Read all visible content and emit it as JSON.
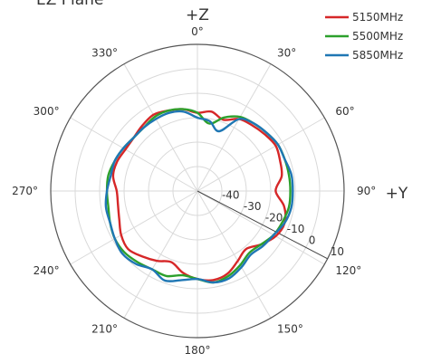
{
  "chart_data": {
    "type": "polar-line",
    "title": "EZ Plane",
    "axis_labels": {
      "top": "+Z",
      "right": "+Y"
    },
    "angle_tick_labels": [
      "0°",
      "30°",
      "60°",
      "90°",
      "120°",
      "150°",
      "180°",
      "210°",
      "240°",
      "270°",
      "300°",
      "330°"
    ],
    "radial_tick_labels": [
      "-40",
      "-30",
      "-20",
      "-10",
      "0",
      "10"
    ],
    "radial_range": [
      -50,
      10
    ],
    "angular_direction": "clockwise",
    "zero_angle_at": "top",
    "grid": true,
    "legend_position": "top-right",
    "theta": [
      0,
      10,
      20,
      30,
      40,
      50,
      60,
      70,
      80,
      90,
      100,
      110,
      120,
      130,
      140,
      150,
      160,
      170,
      180,
      190,
      200,
      210,
      220,
      230,
      240,
      250,
      260,
      270,
      280,
      290,
      300,
      310,
      320,
      330,
      340,
      350
    ],
    "series": [
      {
        "name": "5150MHz",
        "color": "#d62728",
        "r": [
          -18,
          -17,
          -19,
          -16,
          -15,
          -14,
          -13,
          -14,
          -15,
          -18,
          -14,
          -12,
          -13,
          -16,
          -19,
          -17,
          -14,
          -13,
          -14,
          -16,
          -19,
          -17,
          -15,
          -13,
          -14,
          -16,
          -17,
          -17,
          -15,
          -15,
          -16,
          -16,
          -15,
          -14,
          -15,
          -16
        ]
      },
      {
        "name": "5500MHz",
        "color": "#2ca02c",
        "r": [
          -18,
          -22,
          -18,
          -15,
          -14,
          -13,
          -12,
          -12,
          -12,
          -12,
          -12,
          -13,
          -14,
          -16,
          -17,
          -15,
          -13,
          -12,
          -14,
          -15,
          -13,
          -13,
          -12,
          -11,
          -11,
          -12,
          -13,
          -13,
          -13,
          -14,
          -15,
          -16,
          -16,
          -15,
          -15,
          -16
        ]
      },
      {
        "name": "5850MHz",
        "color": "#1f77b4",
        "r": [
          -20,
          -21,
          -24,
          -16,
          -14,
          -13,
          -12,
          -12,
          -11,
          -11,
          -11,
          -12,
          -14,
          -15,
          -16,
          -14,
          -12,
          -12,
          -14,
          -13,
          -11,
          -13,
          -11,
          -10,
          -11,
          -12,
          -12,
          -13,
          -14,
          -14,
          -15,
          -16,
          -16,
          -16,
          -16,
          -17
        ]
      }
    ]
  }
}
